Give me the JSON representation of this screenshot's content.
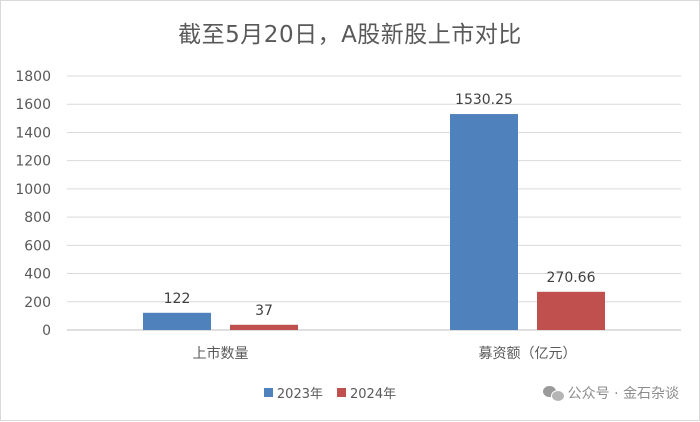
{
  "chart_data": {
    "type": "bar",
    "title": "截至5月20日，A股新股上市对比",
    "categories": [
      "上市数量",
      "募资额（亿元）"
    ],
    "series": [
      {
        "name": "2023年",
        "values": [
          122,
          1530.25
        ],
        "labels": [
          "122",
          "1530.25"
        ],
        "color": "#4f81bd"
      },
      {
        "name": "2024年",
        "values": [
          37,
          270.66
        ],
        "labels": [
          "37",
          "270.66"
        ],
        "color": "#c0504d"
      }
    ],
    "ylim": [
      0,
      1800
    ],
    "yticks": [
      "0",
      "200",
      "400",
      "600",
      "800",
      "1000",
      "1200",
      "1400",
      "1600",
      "1800"
    ],
    "grid": true,
    "legend": "bottom"
  },
  "watermark": {
    "text": "公众号 · 金石杂谈",
    "icon": "wechat-icon"
  }
}
